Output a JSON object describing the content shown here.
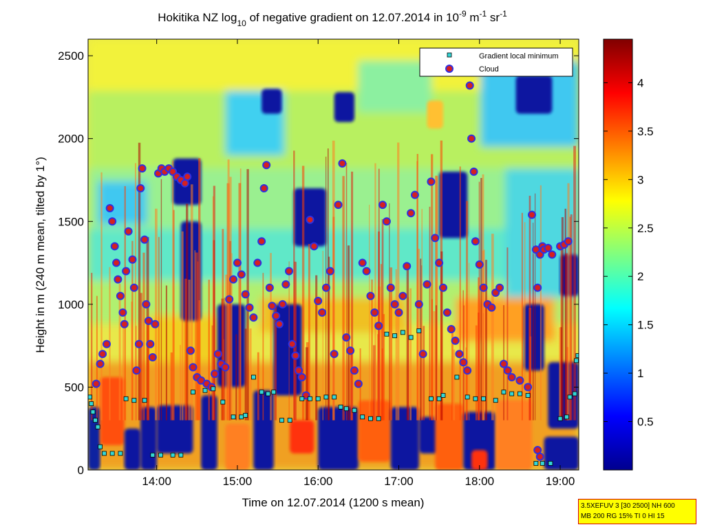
{
  "chart_data": {
    "type": "heatmap",
    "title": {
      "prefix": "Hokitika NZ log",
      "prefix_sub": "10",
      "middle": " of negative gradient on 12.07.2014 in 10",
      "exp1": "-9",
      "unit1": " m",
      "exp2": "-1",
      "unit2": " sr",
      "exp3": "-1"
    },
    "xlabel": "Time on 12.07.2014 (1200 s mean)",
    "ylabel": "Height in m (240 m mean, tilted by 1°)",
    "xlim": [
      13.15,
      19.23
    ],
    "ylim": [
      0,
      2600
    ],
    "x_ticks": [
      {
        "value": 14,
        "label": "14:00"
      },
      {
        "value": 15,
        "label": "15:00"
      },
      {
        "value": 16,
        "label": "16:00"
      },
      {
        "value": 17,
        "label": "17:00"
      },
      {
        "value": 18,
        "label": "18:00"
      },
      {
        "value": 19,
        "label": "19:00"
      }
    ],
    "y_ticks": [
      {
        "value": 0,
        "label": "0"
      },
      {
        "value": 500,
        "label": "500"
      },
      {
        "value": 1000,
        "label": "1000"
      },
      {
        "value": 1500,
        "label": "1500"
      },
      {
        "value": 2000,
        "label": "2000"
      },
      {
        "value": 2500,
        "label": "2500"
      }
    ],
    "colorbar": {
      "colormap": "jet",
      "range": [
        0,
        4.45
      ],
      "ticks": [
        {
          "value": 0.5,
          "label": "0.5"
        },
        {
          "value": 1,
          "label": "1"
        },
        {
          "value": 1.5,
          "label": "1.5"
        },
        {
          "value": 2,
          "label": "2"
        },
        {
          "value": 2.5,
          "label": "2.5"
        },
        {
          "value": 3,
          "label": "3"
        },
        {
          "value": 3.5,
          "label": "3.5"
        },
        {
          "value": 4,
          "label": "4"
        }
      ]
    },
    "legend": {
      "position": "top-right",
      "entries": [
        {
          "name": "Gradient local minimum",
          "marker": "square",
          "color": "#33d6d6"
        },
        {
          "name": "Cloud",
          "marker": "circle",
          "color": "#d42020"
        }
      ]
    },
    "series": [
      {
        "name": "Gradient local minimum",
        "points": [
          [
            13.17,
            440
          ],
          [
            13.19,
            400
          ],
          [
            13.21,
            350
          ],
          [
            13.24,
            300
          ],
          [
            13.27,
            260
          ],
          [
            13.3,
            140
          ],
          [
            13.35,
            100
          ],
          [
            13.45,
            100
          ],
          [
            13.55,
            100
          ],
          [
            13.62,
            430
          ],
          [
            13.72,
            420
          ],
          [
            13.85,
            420
          ],
          [
            13.95,
            90
          ],
          [
            14.05,
            90
          ],
          [
            14.2,
            90
          ],
          [
            14.3,
            90
          ],
          [
            14.45,
            470
          ],
          [
            14.6,
            480
          ],
          [
            14.7,
            490
          ],
          [
            14.82,
            410
          ],
          [
            14.95,
            320
          ],
          [
            15.05,
            320
          ],
          [
            15.1,
            330
          ],
          [
            15.2,
            560
          ],
          [
            15.3,
            470
          ],
          [
            15.38,
            460
          ],
          [
            15.45,
            470
          ],
          [
            15.55,
            300
          ],
          [
            15.65,
            300
          ],
          [
            15.8,
            430
          ],
          [
            15.9,
            430
          ],
          [
            16.0,
            430
          ],
          [
            16.1,
            440
          ],
          [
            16.2,
            440
          ],
          [
            16.28,
            380
          ],
          [
            16.35,
            370
          ],
          [
            16.45,
            360
          ],
          [
            16.55,
            320
          ],
          [
            16.65,
            310
          ],
          [
            16.75,
            310
          ],
          [
            16.85,
            820
          ],
          [
            16.95,
            810
          ],
          [
            17.05,
            830
          ],
          [
            17.15,
            800
          ],
          [
            17.25,
            840
          ],
          [
            17.4,
            430
          ],
          [
            17.5,
            430
          ],
          [
            17.55,
            450
          ],
          [
            17.72,
            560
          ],
          [
            17.85,
            440
          ],
          [
            17.95,
            430
          ],
          [
            18.05,
            430
          ],
          [
            18.2,
            420
          ],
          [
            18.3,
            470
          ],
          [
            18.4,
            460
          ],
          [
            18.5,
            460
          ],
          [
            18.6,
            450
          ],
          [
            18.7,
            40
          ],
          [
            18.78,
            40
          ],
          [
            18.88,
            40
          ],
          [
            19.0,
            310
          ],
          [
            19.08,
            320
          ],
          [
            19.12,
            440
          ],
          [
            19.18,
            460
          ],
          [
            19.2,
            660
          ],
          [
            19.22,
            690
          ]
        ]
      },
      {
        "name": "Cloud",
        "points": [
          [
            13.25,
            520
          ],
          [
            13.3,
            640
          ],
          [
            13.33,
            700
          ],
          [
            13.38,
            760
          ],
          [
            13.42,
            1580
          ],
          [
            13.45,
            1500
          ],
          [
            13.48,
            1350
          ],
          [
            13.5,
            1250
          ],
          [
            13.52,
            1150
          ],
          [
            13.55,
            1050
          ],
          [
            13.58,
            950
          ],
          [
            13.6,
            880
          ],
          [
            13.62,
            1200
          ],
          [
            13.65,
            1440
          ],
          [
            13.7,
            1270
          ],
          [
            13.72,
            1100
          ],
          [
            13.75,
            600
          ],
          [
            13.78,
            760
          ],
          [
            13.8,
            1700
          ],
          [
            13.82,
            1820
          ],
          [
            13.85,
            1390
          ],
          [
            13.87,
            1000
          ],
          [
            13.9,
            900
          ],
          [
            13.92,
            760
          ],
          [
            13.95,
            680
          ],
          [
            13.98,
            880
          ],
          [
            14.02,
            1790
          ],
          [
            14.06,
            1820
          ],
          [
            14.1,
            1800
          ],
          [
            14.15,
            1820
          ],
          [
            14.2,
            1800
          ],
          [
            14.25,
            1770
          ],
          [
            14.3,
            1750
          ],
          [
            14.35,
            1730
          ],
          [
            14.38,
            1770
          ],
          [
            14.42,
            720
          ],
          [
            14.45,
            620
          ],
          [
            14.5,
            560
          ],
          [
            14.55,
            540
          ],
          [
            14.62,
            520
          ],
          [
            14.68,
            500
          ],
          [
            14.72,
            580
          ],
          [
            14.76,
            700
          ],
          [
            14.8,
            640
          ],
          [
            14.85,
            620
          ],
          [
            14.9,
            1030
          ],
          [
            14.95,
            1150
          ],
          [
            15.0,
            1250
          ],
          [
            15.05,
            1180
          ],
          [
            15.1,
            1060
          ],
          [
            15.15,
            980
          ],
          [
            15.2,
            920
          ],
          [
            15.25,
            1250
          ],
          [
            15.3,
            1380
          ],
          [
            15.33,
            1700
          ],
          [
            15.36,
            1840
          ],
          [
            15.4,
            1100
          ],
          [
            15.43,
            990
          ],
          [
            15.48,
            930
          ],
          [
            15.52,
            880
          ],
          [
            15.56,
            1000
          ],
          [
            15.6,
            1120
          ],
          [
            15.64,
            1200
          ],
          [
            15.68,
            760
          ],
          [
            15.72,
            690
          ],
          [
            15.76,
            600
          ],
          [
            15.8,
            560
          ],
          [
            15.85,
            450
          ],
          [
            15.9,
            1510
          ],
          [
            15.95,
            1350
          ],
          [
            16.0,
            1020
          ],
          [
            16.05,
            950
          ],
          [
            16.1,
            1100
          ],
          [
            16.15,
            1200
          ],
          [
            16.2,
            700
          ],
          [
            16.25,
            1600
          ],
          [
            16.3,
            1850
          ],
          [
            16.35,
            800
          ],
          [
            16.4,
            720
          ],
          [
            16.45,
            600
          ],
          [
            16.5,
            520
          ],
          [
            16.55,
            1250
          ],
          [
            16.6,
            1200
          ],
          [
            16.65,
            1050
          ],
          [
            16.7,
            950
          ],
          [
            16.75,
            870
          ],
          [
            16.8,
            1600
          ],
          [
            16.85,
            1500
          ],
          [
            16.9,
            1100
          ],
          [
            16.95,
            1000
          ],
          [
            17.0,
            950
          ],
          [
            17.05,
            1050
          ],
          [
            17.1,
            1230
          ],
          [
            17.15,
            1550
          ],
          [
            17.2,
            1660
          ],
          [
            17.25,
            1000
          ],
          [
            17.3,
            700
          ],
          [
            17.35,
            1120
          ],
          [
            17.4,
            1740
          ],
          [
            17.45,
            1400
          ],
          [
            17.5,
            1250
          ],
          [
            17.55,
            1100
          ],
          [
            17.6,
            950
          ],
          [
            17.65,
            850
          ],
          [
            17.7,
            780
          ],
          [
            17.75,
            700
          ],
          [
            17.8,
            650
          ],
          [
            17.85,
            600
          ],
          [
            17.88,
            2320
          ],
          [
            17.9,
            2000
          ],
          [
            17.93,
            1800
          ],
          [
            17.95,
            1380
          ],
          [
            18.0,
            1240
          ],
          [
            18.05,
            1100
          ],
          [
            18.1,
            1000
          ],
          [
            18.15,
            980
          ],
          [
            18.2,
            1070
          ],
          [
            18.25,
            1100
          ],
          [
            18.3,
            640
          ],
          [
            18.35,
            600
          ],
          [
            18.4,
            560
          ],
          [
            18.5,
            540
          ],
          [
            18.6,
            500
          ],
          [
            18.65,
            1540
          ],
          [
            18.7,
            1330
          ],
          [
            18.72,
            1100
          ],
          [
            18.75,
            1300
          ],
          [
            18.78,
            1350
          ],
          [
            18.8,
            1330
          ],
          [
            18.85,
            1340
          ],
          [
            18.9,
            1300
          ],
          [
            19.0,
            1350
          ],
          [
            19.05,
            1360
          ],
          [
            19.1,
            1380
          ],
          [
            18.72,
            120
          ],
          [
            18.75,
            80
          ]
        ]
      }
    ]
  },
  "info_box": {
    "line1": "3.5XEFUV 3 [30 2500] NH 600",
    "line2": "MB 200 RG 15% TI 0 HI 15"
  }
}
